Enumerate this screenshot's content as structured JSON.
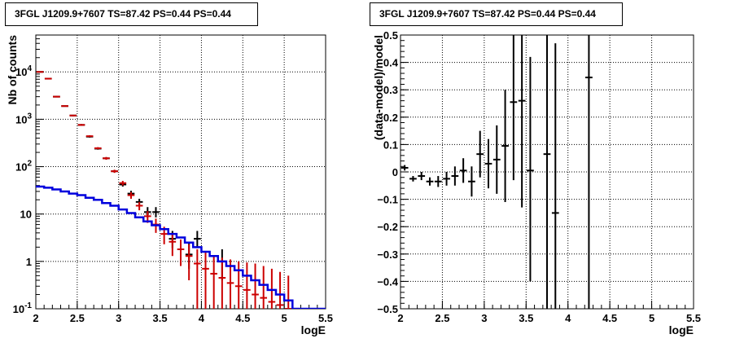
{
  "chart_data": [
    {
      "type": "scatter",
      "title": "3FGL J1209.9+7607 TS=87.42 PS=0.44 PS=0.44",
      "xlabel": "logE",
      "ylabel": "Nb of counts",
      "xlim": [
        2,
        5.5
      ],
      "ylim": [
        0.1,
        60000
      ],
      "yscale": "log",
      "grid": true,
      "x_ticks": [
        "2",
        "2.5",
        "3",
        "3.5",
        "4",
        "4.5",
        "5",
        "5.5"
      ],
      "y_ticks": [
        "10^{-1}",
        "1",
        "10",
        "10^{2}",
        "10^{3}",
        "10^{4}"
      ],
      "colors": {
        "data": "#000000",
        "model_points": "#cc0000",
        "model_line": "#0000dd"
      },
      "series": [
        {
          "kind": "points",
          "color": "#000000",
          "x": [
            2.05,
            2.15,
            2.25,
            2.35,
            2.45,
            2.55,
            2.65,
            2.75,
            2.85,
            2.95,
            3.05,
            3.15,
            3.25,
            3.35,
            3.45,
            3.65,
            3.85,
            3.95,
            4.25
          ],
          "y": [
            10000,
            7200,
            3000,
            1900,
            1200,
            760,
            430,
            240,
            150,
            80,
            42,
            27,
            18,
            11,
            11,
            3,
            1.4,
            3,
            1
          ],
          "y_low": [
            9800,
            7000,
            2900,
            1850,
            1160,
            730,
            410,
            228,
            142,
            75,
            38,
            23,
            15,
            8.5,
            8.5,
            1.9,
            0.7,
            1.9,
            0.4
          ],
          "y_high": [
            10200,
            7400,
            3100,
            1950,
            1240,
            790,
            450,
            252,
            158,
            85,
            46,
            31,
            21,
            14,
            14,
            4.4,
            2.4,
            4.4,
            1.8
          ]
        },
        {
          "kind": "points",
          "color": "#cc0000",
          "x": [
            2.05,
            2.15,
            2.25,
            2.35,
            2.45,
            2.55,
            2.65,
            2.75,
            2.85,
            2.95,
            3.05,
            3.15,
            3.25,
            3.35,
            3.45,
            3.55,
            3.65,
            3.75,
            3.85,
            3.95,
            4.05,
            4.15,
            4.25,
            4.35,
            4.45,
            4.55,
            4.65,
            4.75,
            4.85,
            4.95,
            5.05
          ],
          "y": [
            10000,
            7200,
            3000,
            1900,
            1200,
            760,
            440,
            245,
            150,
            80,
            45,
            25,
            15,
            9,
            6,
            3.8,
            2.6,
            1.8,
            1.3,
            0.9,
            0.7,
            0.55,
            0.45,
            0.35,
            0.3,
            0.25,
            0.2,
            0.17,
            0.14,
            0.12,
            0.1
          ],
          "y_low": [
            9800,
            7000,
            2900,
            1850,
            1160,
            730,
            420,
            232,
            140,
            74,
            40,
            21,
            12,
            6.5,
            4,
            2.3,
            1.3,
            0.8,
            0.4,
            0.1,
            0.1,
            0.1,
            0.1,
            0.1,
            0.1,
            0.1,
            0.1,
            0.1,
            0.1,
            0.1,
            0.1
          ],
          "y_high": [
            10200,
            7400,
            3100,
            1950,
            1240,
            790,
            460,
            258,
            160,
            86,
            50,
            29,
            18,
            11.5,
            8,
            5.4,
            4,
            2.9,
            2.3,
            1.8,
            1.6,
            1.3,
            1.2,
            1.1,
            1.0,
            0.95,
            0.9,
            0.8,
            0.7,
            0.6,
            0.5
          ]
        },
        {
          "kind": "step",
          "color": "#0000dd",
          "x_edges": [
            2.0,
            2.1,
            2.2,
            2.3,
            2.4,
            2.5,
            2.6,
            2.7,
            2.8,
            2.9,
            3.0,
            3.1,
            3.2,
            3.3,
            3.4,
            3.5,
            3.6,
            3.7,
            3.8,
            3.9,
            4.0,
            4.1,
            4.2,
            4.3,
            4.4,
            4.5,
            4.6,
            4.7,
            4.8,
            4.9,
            5.0,
            5.1,
            5.5
          ],
          "y": [
            38,
            36,
            33,
            30,
            27,
            25,
            22,
            20,
            17,
            15,
            12.5,
            10.5,
            8.5,
            7,
            5.8,
            4.8,
            3.8,
            3.2,
            2.5,
            2,
            1.6,
            1.3,
            1.0,
            0.8,
            0.65,
            0.5,
            0.4,
            0.32,
            0.25,
            0.2,
            0.15,
            0.1
          ]
        }
      ]
    },
    {
      "type": "scatter",
      "title": "3FGL J1209.9+7607 TS=87.42 PS=0.44 PS=0.44",
      "xlabel": "logE",
      "ylabel": "(data-model)/model",
      "xlim": [
        2,
        5.5
      ],
      "ylim": [
        -0.5,
        0.5
      ],
      "grid": true,
      "x_ticks": [
        "2",
        "2.5",
        "3",
        "3.5",
        "4",
        "4.5",
        "5",
        "5.5"
      ],
      "y_ticks": [
        "−0.5",
        "−0.4",
        "−0.3",
        "−0.2",
        "−0.1",
        "0",
        "0.1",
        "0.2",
        "0.3",
        "0.4",
        "0.5"
      ],
      "series": [
        {
          "kind": "points",
          "color": "#000000",
          "x": [
            2.05,
            2.15,
            2.25,
            2.35,
            2.45,
            2.55,
            2.65,
            2.75,
            2.85,
            2.95,
            3.05,
            3.15,
            3.25,
            3.35,
            3.45,
            3.55,
            3.75,
            3.85,
            4.25
          ],
          "y": [
            0.015,
            -0.025,
            -0.015,
            -0.035,
            -0.035,
            -0.025,
            -0.015,
            0.005,
            -0.035,
            0.065,
            0.03,
            0.045,
            0.095,
            0.255,
            0.26,
            0.005,
            0.065,
            -0.15,
            0.345
          ],
          "y_low": [
            0.005,
            -0.035,
            -0.03,
            -0.05,
            -0.055,
            -0.05,
            -0.05,
            -0.04,
            -0.09,
            -0.02,
            -0.06,
            -0.08,
            -0.11,
            -0.03,
            -0.13,
            -0.4,
            -0.5,
            -0.5,
            -0.5
          ],
          "y_high": [
            0.025,
            -0.015,
            0.0,
            -0.02,
            -0.015,
            0.0,
            0.02,
            0.05,
            0.02,
            0.15,
            0.12,
            0.17,
            0.3,
            0.5,
            0.5,
            0.42,
            0.5,
            0.47,
            0.5
          ]
        }
      ]
    }
  ]
}
